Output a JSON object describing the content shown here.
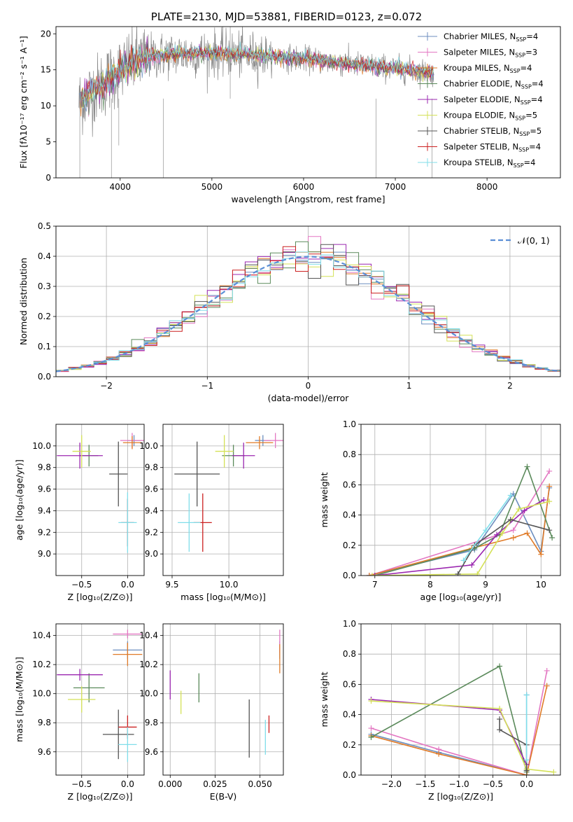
{
  "title": "PLATE=2130, MJD=53881, FIBERID=0123, z=0.072",
  "colors": {
    "chabrier_miles": "#6c8ebf",
    "salpeter_miles": "#e377c2",
    "kroupa_miles": "#e07b28",
    "chabrier_elodie": "#5b8a5b",
    "salpeter_elodie": "#9b27b0",
    "kroupa_elodie": "#d4e157",
    "chabrier_stelib": "#555555",
    "salpeter_stelib": "#cc2020",
    "kroupa_stelib": "#80deea",
    "data": "#888888",
    "normal_curve": "#5b8fd6"
  },
  "chart_data": [
    {
      "id": "spectrum",
      "type": "line",
      "title": "PLATE=2130, MJD=53881, FIBERID=0123, z=0.072",
      "xlabel": "wavelength [Angstrom, rest frame]",
      "ylabel": "Flux [fλ10⁻¹⁷ erg cm⁻² s⁻¹ A⁻¹]",
      "xlim": [
        3300,
        8800
      ],
      "ylim": [
        0,
        21
      ],
      "xticks": [
        "4000",
        "5000",
        "6000",
        "7000",
        "8000"
      ],
      "yticks": [
        "0",
        "5",
        "10",
        "15",
        "20"
      ],
      "grid": false,
      "legend_position": "top-right",
      "legend": [
        {
          "name": "Chabrier MILES, N",
          "sub": "SSP",
          "suffix": "=4",
          "key": "chabrier_miles"
        },
        {
          "name": "Salpeter MILES, N",
          "sub": "SSP",
          "suffix": "=3",
          "key": "salpeter_miles"
        },
        {
          "name": "Kroupa MILES, N",
          "sub": "SSP",
          "suffix": "=4",
          "key": "kroupa_miles"
        },
        {
          "name": "Chabrier ELODIE, N",
          "sub": "SSP",
          "suffix": "=4",
          "key": "chabrier_elodie"
        },
        {
          "name": "Salpeter ELODIE, N",
          "sub": "SSP",
          "suffix": "=4",
          "key": "salpeter_elodie"
        },
        {
          "name": "Kroupa ELODIE, N",
          "sub": "SSP",
          "suffix": "=5",
          "key": "kroupa_elodie"
        },
        {
          "name": "Chabrier STELIB, N",
          "sub": "SSP",
          "suffix": "=5",
          "key": "chabrier_stelib"
        },
        {
          "name": "Salpeter STELIB, N",
          "sub": "SSP",
          "suffix": "=4",
          "key": "salpeter_stelib"
        },
        {
          "name": "Kroupa STELIB, N",
          "sub": "SSP",
          "suffix": "=4",
          "key": "kroupa_stelib"
        }
      ],
      "continuum": {
        "x": [
          3550,
          3700,
          3900,
          4100,
          4300,
          4600,
          5000,
          5500,
          6000,
          6500,
          7000,
          7400
        ],
        "y": [
          10.5,
          12.0,
          14.0,
          15.8,
          16.8,
          17.2,
          17.3,
          17.0,
          16.5,
          15.8,
          15.2,
          14.6
        ]
      }
    },
    {
      "id": "residuals",
      "type": "bar",
      "xlabel": "(data-model)/error",
      "ylabel": "Normed distribution",
      "xlim": [
        -2.5,
        2.5
      ],
      "ylim": [
        0,
        0.5
      ],
      "xticks": [
        "−2",
        "−1",
        "0",
        "1",
        "2"
      ],
      "yticks": [
        "0.0",
        "0.1",
        "0.2",
        "0.3",
        "0.4",
        "0.5"
      ],
      "grid": true,
      "legend_position": "top-right",
      "legend": [
        {
          "name": "𝒩(0, 1)",
          "key": "normal_curve"
        }
      ]
    },
    {
      "id": "age_vs_Z",
      "type": "scatter",
      "xlabel": "Z [log₁₀(Z/Z⊙)]",
      "ylabel": "age  [log₁₀(age/yr)]",
      "xlim": [
        -0.78,
        0.18
      ],
      "ylim": [
        8.8,
        10.2
      ],
      "xticks": [
        "−0.5",
        "0.0"
      ],
      "yticks": [
        "9.0",
        "9.2",
        "9.4",
        "9.6",
        "9.8",
        "10.0"
      ],
      "grid": true,
      "points": [
        {
          "key": "chabrier_miles",
          "x": 0.07,
          "y": 10.05,
          "xerr": 0.07,
          "yerr": 0.05
        },
        {
          "key": "salpeter_miles",
          "x": 0.05,
          "y": 10.05,
          "xerr": 0.13,
          "yerr": 0.07
        },
        {
          "key": "kroupa_miles",
          "x": 0.05,
          "y": 10.03,
          "xerr": 0.1,
          "yerr": 0.06
        },
        {
          "key": "chabrier_elodie",
          "x": -0.42,
          "y": 9.91,
          "xerr": 0.1,
          "yerr": 0.1
        },
        {
          "key": "salpeter_elodie",
          "x": -0.52,
          "y": 9.91,
          "xerr": 0.25,
          "yerr": 0.12
        },
        {
          "key": "kroupa_elodie",
          "x": -0.5,
          "y": 9.95,
          "xerr": 0.1,
          "yerr": 0.15
        },
        {
          "key": "chabrier_stelib",
          "x": -0.1,
          "y": 9.74,
          "xerr": 0.1,
          "yerr": 0.3
        },
        {
          "key": "salpeter_stelib",
          "x": 0.0,
          "y": 9.29,
          "xerr": 0.07,
          "yerr": 0.22
        },
        {
          "key": "kroupa_stelib",
          "x": 0.0,
          "y": 9.29,
          "xerr": 0.1,
          "yerr": 0.28
        }
      ]
    },
    {
      "id": "age_vs_mass",
      "type": "scatter",
      "xlabel": "mass [log₁₀(M/M⊙)]",
      "ylabel": "",
      "xlim": [
        9.42,
        10.48
      ],
      "ylim": [
        8.8,
        10.2
      ],
      "xticks": [
        "9.5",
        "10.0"
      ],
      "yticks": [
        "9.0",
        "9.2",
        "9.4",
        "9.6",
        "9.8",
        "10.0"
      ],
      "grid": true,
      "points": [
        {
          "key": "chabrier_miles",
          "x": 10.3,
          "y": 10.05,
          "xerr": 0.07,
          "yerr": 0.05
        },
        {
          "key": "salpeter_miles",
          "x": 10.41,
          "y": 10.05,
          "xerr": 0.1,
          "yerr": 0.07
        },
        {
          "key": "kroupa_miles",
          "x": 10.27,
          "y": 10.03,
          "xerr": 0.12,
          "yerr": 0.06
        },
        {
          "key": "chabrier_elodie",
          "x": 10.04,
          "y": 9.91,
          "xerr": 0.1,
          "yerr": 0.1
        },
        {
          "key": "salpeter_elodie",
          "x": 10.13,
          "y": 9.91,
          "xerr": 0.1,
          "yerr": 0.12
        },
        {
          "key": "kroupa_elodie",
          "x": 9.96,
          "y": 9.95,
          "xerr": 0.08,
          "yerr": 0.15
        },
        {
          "key": "chabrier_stelib",
          "x": 9.72,
          "y": 9.74,
          "xerr": 0.2,
          "yerr": 0.3
        },
        {
          "key": "salpeter_stelib",
          "x": 9.77,
          "y": 9.29,
          "xerr": 0.08,
          "yerr": 0.27
        },
        {
          "key": "kroupa_stelib",
          "x": 9.65,
          "y": 9.29,
          "xerr": 0.1,
          "yerr": 0.27
        }
      ]
    },
    {
      "id": "weight_vs_age",
      "type": "line",
      "xlabel": "age  [log₁₀(age/yr)]",
      "ylabel": "mass weight",
      "xlim": [
        6.75,
        10.35
      ],
      "ylim": [
        0,
        1
      ],
      "xticks": [
        "7",
        "8",
        "9",
        "10"
      ],
      "yticks": [
        "0.0",
        "0.2",
        "0.4",
        "0.6",
        "0.8",
        "1.0"
      ],
      "grid": true,
      "series": [
        {
          "key": "chabrier_miles",
          "x": [
            6.9,
            8.8,
            9.5,
            10.0,
            10.15
          ],
          "y": [
            0.0,
            0.17,
            0.54,
            0.16,
            0.58
          ]
        },
        {
          "key": "salpeter_miles",
          "x": [
            6.9,
            9.5,
            10.15
          ],
          "y": [
            0.0,
            0.3,
            0.69
          ]
        },
        {
          "key": "kroupa_miles",
          "x": [
            6.9,
            8.75,
            9.5,
            9.75,
            10.0,
            10.15
          ],
          "y": [
            0.0,
            0.18,
            0.25,
            0.28,
            0.14,
            0.59
          ]
        },
        {
          "key": "chabrier_elodie",
          "x": [
            7.0,
            8.8,
            9.25,
            9.75,
            10.2
          ],
          "y": [
            0.0,
            0.18,
            0.27,
            0.72,
            0.25
          ]
        },
        {
          "key": "salpeter_elodie",
          "x": [
            7.0,
            8.75,
            9.2,
            9.7,
            10.05
          ],
          "y": [
            0.0,
            0.07,
            0.27,
            0.43,
            0.5
          ]
        },
        {
          "key": "kroupa_elodie",
          "x": [
            6.95,
            8.85,
            9.3,
            9.6,
            10.15
          ],
          "y": [
            0.0,
            0.01,
            0.28,
            0.44,
            0.49
          ]
        },
        {
          "key": "chabrier_stelib",
          "x": [
            8.5,
            8.8,
            9.45,
            10.15
          ],
          "y": [
            0.01,
            0.2,
            0.37,
            0.3
          ]
        },
        {
          "key": "kroupa_stelib",
          "x": [
            8.6,
            9.0,
            9.45
          ],
          "y": [
            0.1,
            0.3,
            0.53
          ]
        }
      ]
    },
    {
      "id": "mass_vs_Z",
      "type": "scatter",
      "xlabel": "Z [log₁₀(Z/Z⊙)]",
      "ylabel": "mass [log₁₀(M/M⊙)]",
      "xlim": [
        -0.78,
        0.18
      ],
      "ylim": [
        9.44,
        10.48
      ],
      "xticks": [
        "−0.5",
        "0.0"
      ],
      "yticks": [
        "9.6",
        "9.8",
        "10.0",
        "10.2",
        "10.4"
      ],
      "grid": true,
      "points": [
        {
          "key": "chabrier_miles",
          "x": 0.0,
          "y": 10.3,
          "xerr": 0.16,
          "yerr": 0.06
        },
        {
          "key": "salpeter_miles",
          "x": 0.0,
          "y": 10.41,
          "xerr": 0.16,
          "yerr": 0.03
        },
        {
          "key": "kroupa_miles",
          "x": 0.0,
          "y": 10.27,
          "xerr": 0.16,
          "yerr": 0.08
        },
        {
          "key": "chabrier_elodie",
          "x": -0.42,
          "y": 10.04,
          "xerr": 0.17,
          "yerr": 0.1
        },
        {
          "key": "salpeter_elodie",
          "x": -0.52,
          "y": 10.13,
          "xerr": 0.25,
          "yerr": 0.04
        },
        {
          "key": "kroupa_elodie",
          "x": -0.5,
          "y": 9.96,
          "xerr": 0.15,
          "yerr": 0.09
        },
        {
          "key": "chabrier_stelib",
          "x": -0.1,
          "y": 9.72,
          "xerr": 0.17,
          "yerr": 0.17
        },
        {
          "key": "salpeter_stelib",
          "x": 0.0,
          "y": 9.77,
          "xerr": 0.1,
          "yerr": 0.08
        },
        {
          "key": "kroupa_stelib",
          "x": 0.0,
          "y": 9.65,
          "xerr": 0.1,
          "yerr": 0.12
        }
      ]
    },
    {
      "id": "mass_vs_ebv",
      "type": "scatter",
      "xlabel": "E(B-V)",
      "ylabel": "",
      "xlim": [
        -0.004,
        0.063
      ],
      "ylim": [
        9.44,
        10.48
      ],
      "xticks": [
        "0.000",
        "0.025",
        "0.050"
      ],
      "yticks": [
        "9.6",
        "9.8",
        "10.0",
        "10.2",
        "10.4"
      ],
      "grid": true,
      "points": [
        {
          "key": "chabrier_miles",
          "x": 0.061,
          "y": 10.3,
          "xerr": 0,
          "yerr": 0.06
        },
        {
          "key": "salpeter_miles",
          "x": 0.061,
          "y": 10.36,
          "xerr": 0,
          "yerr": 0.08
        },
        {
          "key": "kroupa_miles",
          "x": 0.061,
          "y": 10.24,
          "xerr": 0,
          "yerr": 0.1
        },
        {
          "key": "chabrier_elodie",
          "x": 0.016,
          "y": 10.04,
          "xerr": 0,
          "yerr": 0.1
        },
        {
          "key": "salpeter_elodie",
          "x": 0.0,
          "y": 10.06,
          "xerr": 0,
          "yerr": 0.1
        },
        {
          "key": "kroupa_elodie",
          "x": 0.006,
          "y": 9.94,
          "xerr": 0,
          "yerr": 0.08
        },
        {
          "key": "chabrier_stelib",
          "x": 0.044,
          "y": 9.76,
          "xerr": 0,
          "yerr": 0.2
        },
        {
          "key": "salpeter_stelib",
          "x": 0.055,
          "y": 9.79,
          "xerr": 0,
          "yerr": 0.06
        },
        {
          "key": "kroupa_stelib",
          "x": 0.053,
          "y": 9.7,
          "xerr": 0,
          "yerr": 0.12
        }
      ]
    },
    {
      "id": "weight_vs_Z",
      "type": "line",
      "xlabel": "Z [log₁₀(Z/Z⊙)]",
      "ylabel": "mass weight",
      "xlim": [
        -2.45,
        0.5
      ],
      "ylim": [
        0,
        1
      ],
      "xticks": [
        "−2.0",
        "−1.5",
        "−1.0",
        "−0.5",
        "0.0"
      ],
      "yticks": [
        "0.0",
        "0.2",
        "0.4",
        "0.6",
        "0.8",
        "1.0"
      ],
      "grid": true,
      "series": [
        {
          "key": "chabrier_miles",
          "x": [
            -2.3,
            -1.3,
            0.0,
            0.0
          ],
          "y": [
            0.27,
            0.15,
            0.0,
            0.53
          ]
        },
        {
          "key": "salpeter_miles",
          "x": [
            -2.3,
            -1.3,
            0.0,
            0.3
          ],
          "y": [
            0.31,
            0.17,
            0.0,
            0.69
          ]
        },
        {
          "key": "kroupa_miles",
          "x": [
            -2.3,
            -1.3,
            0.0,
            0.3
          ],
          "y": [
            0.26,
            0.14,
            0.0,
            0.59
          ]
        },
        {
          "key": "chabrier_elodie",
          "x": [
            -2.3,
            -0.4,
            0.0
          ],
          "y": [
            0.25,
            0.72,
            0.02
          ]
        },
        {
          "key": "salpeter_elodie",
          "x": [
            -2.3,
            -0.4,
            0.0
          ],
          "y": [
            0.5,
            0.43,
            0.07
          ]
        },
        {
          "key": "kroupa_elodie",
          "x": [
            -2.3,
            -0.4,
            0.0,
            0.4
          ],
          "y": [
            0.49,
            0.44,
            0.04,
            0.02
          ]
        },
        {
          "key": "chabrier_stelib",
          "x": [
            -0.4,
            -0.4,
            0.0,
            0.0
          ],
          "y": [
            0.37,
            0.3,
            0.2,
            0.03
          ]
        },
        {
          "key": "kroupa_stelib",
          "x": [
            0.0,
            0.0
          ],
          "y": [
            0.53,
            0.1
          ]
        }
      ]
    }
  ]
}
